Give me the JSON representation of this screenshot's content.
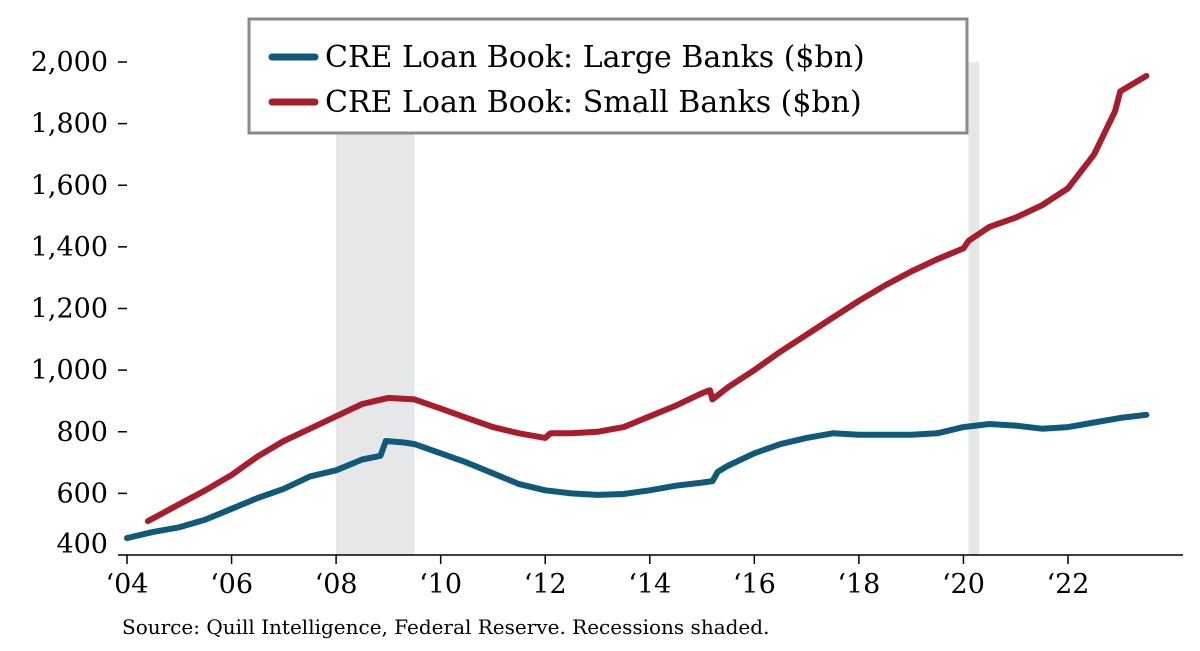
{
  "chart_data": {
    "type": "line",
    "title": "",
    "xlabel": "",
    "ylabel": "",
    "xlim": [
      2004.0,
      2024.2
    ],
    "ylim": [
      400,
      2000
    ],
    "y_ticks": [
      400,
      600,
      800,
      1000,
      1200,
      1400,
      1600,
      1800,
      2000
    ],
    "y_tick_labels": [
      "400",
      "600",
      "800",
      "1,000",
      "1,200",
      "1,400",
      "1,600",
      "1,800",
      "2,000"
    ],
    "x_ticks": [
      2004,
      2006,
      2008,
      2010,
      2012,
      2014,
      2016,
      2018,
      2020,
      2022
    ],
    "x_tick_labels": [
      "‘04",
      "‘06",
      "‘08",
      "‘10",
      "‘12",
      "‘14",
      "‘16",
      "‘18",
      "‘20",
      "‘22"
    ],
    "recessions": [
      {
        "start": 2008.0,
        "end": 2009.5
      },
      {
        "start": 2020.1,
        "end": 2020.3
      }
    ],
    "legend_position": "top-center",
    "series": [
      {
        "name": "CRE Loan Book: Large Banks ($bn)",
        "color": "#0e5a78",
        "x": [
          2004.0,
          2004.5,
          2005.0,
          2005.5,
          2006.0,
          2006.5,
          2007.0,
          2007.5,
          2008.0,
          2008.5,
          2008.85,
          2008.95,
          2009.3,
          2009.5,
          2010.0,
          2010.5,
          2011.0,
          2011.5,
          2012.0,
          2012.5,
          2013.0,
          2013.5,
          2014.0,
          2014.5,
          2015.0,
          2015.2,
          2015.3,
          2015.5,
          2016.0,
          2016.5,
          2017.0,
          2017.5,
          2018.0,
          2018.5,
          2019.0,
          2019.5,
          2020.0,
          2020.5,
          2021.0,
          2021.5,
          2022.0,
          2022.5,
          2023.0,
          2023.5
        ],
        "values": [
          455,
          475,
          490,
          515,
          550,
          585,
          615,
          655,
          675,
          710,
          722,
          770,
          765,
          760,
          730,
          700,
          665,
          630,
          610,
          600,
          595,
          598,
          610,
          625,
          635,
          640,
          670,
          690,
          730,
          760,
          780,
          795,
          790,
          790,
          790,
          795,
          815,
          825,
          820,
          810,
          815,
          830,
          845,
          855
        ]
      },
      {
        "name": "CRE Loan Book: Small Banks ($bn)",
        "color": "#a81c2c",
        "x": [
          2004.4,
          2005.0,
          2005.5,
          2006.0,
          2006.5,
          2007.0,
          2007.5,
          2008.0,
          2008.5,
          2009.0,
          2009.5,
          2010.0,
          2010.5,
          2011.0,
          2011.5,
          2012.0,
          2012.1,
          2012.5,
          2013.0,
          2013.5,
          2014.0,
          2014.5,
          2015.0,
          2015.15,
          2015.2,
          2015.5,
          2016.0,
          2016.5,
          2017.0,
          2017.5,
          2018.0,
          2018.5,
          2019.0,
          2019.5,
          2020.0,
          2020.1,
          2020.5,
          2021.0,
          2021.5,
          2022.0,
          2022.5,
          2022.9,
          2023.0,
          2023.5
        ],
        "values": [
          510,
          565,
          610,
          660,
          720,
          770,
          810,
          850,
          890,
          910,
          905,
          875,
          845,
          815,
          795,
          780,
          795,
          795,
          800,
          815,
          850,
          885,
          925,
          935,
          905,
          945,
          1000,
          1060,
          1115,
          1170,
          1225,
          1275,
          1320,
          1360,
          1395,
          1420,
          1465,
          1495,
          1535,
          1590,
          1700,
          1840,
          1905,
          1955
        ]
      }
    ],
    "source": "Source: Quill Intelligence, Federal Reserve. Recessions shaded."
  }
}
